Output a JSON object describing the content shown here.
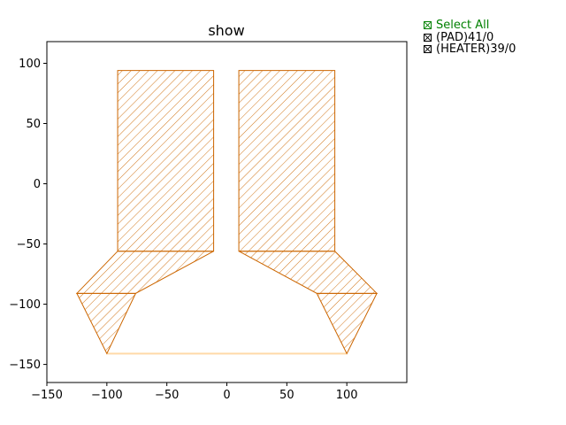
{
  "title": "show",
  "legend": {
    "select_all": "Select All",
    "items": [
      "(PAD)41/0",
      "(HEATER)39/0"
    ]
  },
  "colors": {
    "shape_edge": "#cc6600",
    "baseline": "#ffd9a8",
    "select_all": "#008000",
    "legend_text": "#000000"
  },
  "chart_data": {
    "type": "polygon-layout",
    "xlim": [
      -150,
      150
    ],
    "ylim": [
      -165,
      118
    ],
    "xticks": [
      -150,
      -100,
      -50,
      0,
      50,
      100
    ],
    "yticks": [
      100,
      50,
      0,
      -50,
      -100,
      -150
    ],
    "polygons": [
      {
        "name": "left-rect",
        "points": [
          [
            -91,
            94
          ],
          [
            -11,
            94
          ],
          [
            -11,
            -56
          ],
          [
            -91,
            -56
          ]
        ]
      },
      {
        "name": "right-rect",
        "points": [
          [
            10,
            94
          ],
          [
            90,
            94
          ],
          [
            90,
            -56
          ],
          [
            10,
            -56
          ]
        ]
      },
      {
        "name": "left-mid",
        "points": [
          [
            -91,
            -56
          ],
          [
            -11,
            -56
          ],
          [
            -76,
            -91
          ],
          [
            -125,
            -91
          ]
        ]
      },
      {
        "name": "right-mid",
        "points": [
          [
            10,
            -56
          ],
          [
            90,
            -56
          ],
          [
            125,
            -91
          ],
          [
            75,
            -91
          ]
        ]
      },
      {
        "name": "left-tip",
        "points": [
          [
            -125,
            -91
          ],
          [
            -76,
            -91
          ],
          [
            -100,
            -141
          ]
        ]
      },
      {
        "name": "right-tip",
        "points": [
          [
            75,
            -91
          ],
          [
            125,
            -91
          ],
          [
            100,
            -141
          ]
        ]
      }
    ],
    "baseline": {
      "x1": -100,
      "x2": 100,
      "y": -141
    }
  }
}
